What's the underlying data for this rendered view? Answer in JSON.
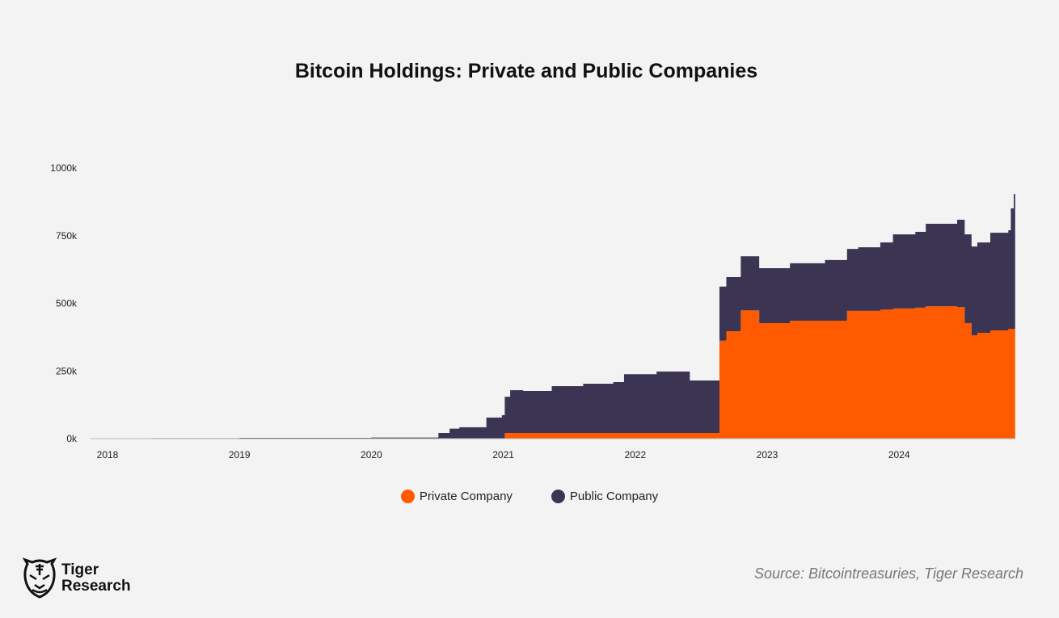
{
  "chart_data": {
    "type": "area",
    "stacked": true,
    "step": true,
    "title": "Bitcoin Holdings: Private and Public Companies",
    "xlabel": "",
    "ylabel": "",
    "x_ticks": [
      "2018",
      "2019",
      "2020",
      "2021",
      "2022",
      "2023",
      "2024"
    ],
    "y_ticks": [
      "0k",
      "250k",
      "500k",
      "750k",
      "1000k"
    ],
    "ylim": [
      0,
      1000000
    ],
    "xlim": [
      "2017-11-15",
      "2024-11-18"
    ],
    "grid": false,
    "legend_position": "bottom",
    "x": [
      "2017-11-15",
      "2018-05-01",
      "2019-01-01",
      "2020-01-01",
      "2020-07-05",
      "2020-08-05",
      "2020-09-01",
      "2020-11-15",
      "2020-12-28",
      "2021-01-05",
      "2021-01-20",
      "2021-02-25",
      "2021-05-15",
      "2021-08-10",
      "2021-11-01",
      "2021-12-01",
      "2022-03-01",
      "2022-06-01",
      "2022-08-22",
      "2022-09-10",
      "2022-10-20",
      "2022-12-10",
      "2023-03-05",
      "2023-06-10",
      "2023-08-10",
      "2023-09-10",
      "2023-11-10",
      "2023-12-15",
      "2024-02-15",
      "2024-03-15",
      "2024-06-10",
      "2024-07-01",
      "2024-07-20",
      "2024-08-05",
      "2024-09-10",
      "2024-10-30",
      "2024-11-06",
      "2024-11-14"
    ],
    "series": [
      {
        "name": "Private Company",
        "color": "#ff5a00",
        "values": [
          0,
          0,
          0,
          0,
          0,
          0,
          0,
          0,
          0,
          21000,
          21000,
          21000,
          21000,
          21000,
          21000,
          21000,
          21000,
          21000,
          362000,
          397000,
          474000,
          427000,
          436000,
          436000,
          472000,
          472000,
          477000,
          481000,
          484000,
          489000,
          486000,
          427000,
          382000,
          391000,
          400000,
          406000,
          406000,
          406000
        ]
      },
      {
        "name": "Public Company",
        "color": "#3b3553",
        "values": [
          0,
          2000,
          3000,
          4000,
          21000,
          37000,
          42000,
          78000,
          87000,
          134000,
          158000,
          155000,
          173000,
          182000,
          188000,
          217000,
          227000,
          194000,
          200000,
          200000,
          200000,
          203000,
          212000,
          224000,
          229000,
          235000,
          248000,
          274000,
          280000,
          305000,
          323000,
          328000,
          328000,
          334000,
          361000,
          364000,
          445000,
          498000
        ]
      }
    ]
  },
  "legend": {
    "private": "Private Company",
    "public": "Public Company"
  },
  "source": "Source: Bitcointreasuries, Tiger Research",
  "logo": {
    "line1": "Tiger",
    "line2": "Research"
  }
}
